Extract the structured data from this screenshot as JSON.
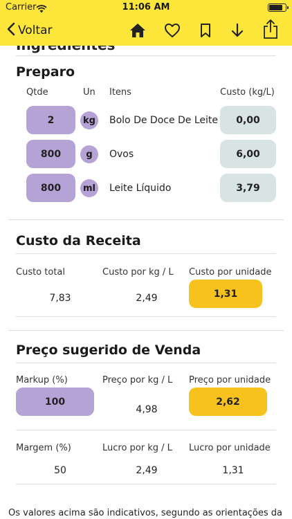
{
  "status_bar": {
    "carrier": "Carrier",
    "time": "11:06 AM"
  },
  "nav": {
    "back_label": "Voltar"
  },
  "cut_section_title": "Ingredientes",
  "preparo": {
    "title": "Preparo",
    "headers": {
      "qty": "Qtde",
      "unit": "Un",
      "items": "Itens",
      "cost": "Custo (kg/L)"
    },
    "rows": [
      {
        "qty": "2",
        "unit": "kg",
        "item": "Bolo De Doce De Leite",
        "cost": "0,00"
      },
      {
        "qty": "800",
        "unit": "g",
        "item": "Ovos",
        "cost": "6,00"
      },
      {
        "qty": "800",
        "unit": "ml",
        "item": "Leite Líquido",
        "cost": "3,79"
      }
    ]
  },
  "custo_receita": {
    "title": "Custo da Receita",
    "labels": {
      "total": "Custo total",
      "per_kg": "Custo por kg / L",
      "per_unit": "Custo por unidade"
    },
    "values": {
      "total": "7,83",
      "per_kg": "2,49",
      "per_unit": "1,31"
    }
  },
  "preco_venda": {
    "title": "Preço sugerido de Venda",
    "labels": {
      "markup": "Markup (%)",
      "price_kg": "Preço por kg / L",
      "price_unit": "Preço por unidade"
    },
    "values": {
      "markup": "100",
      "price_kg": "4,98",
      "price_unit": "2,62"
    },
    "labels2": {
      "margin": "Margem (%)",
      "profit_kg": "Lucro por kg / L",
      "profit_unit": "Lucro por unidade"
    },
    "values2": {
      "margin": "50",
      "profit_kg": "2,49",
      "profit_unit": "1,31"
    }
  },
  "footer_text": "Os valores acima são indicativos, segundo as orientações da",
  "colors": {
    "accent_yellow": "#ffe63b",
    "pill_purple": "#b6a3d6",
    "pill_gray": "#d8e3e4",
    "highlight_yellow": "#f7c21d"
  }
}
